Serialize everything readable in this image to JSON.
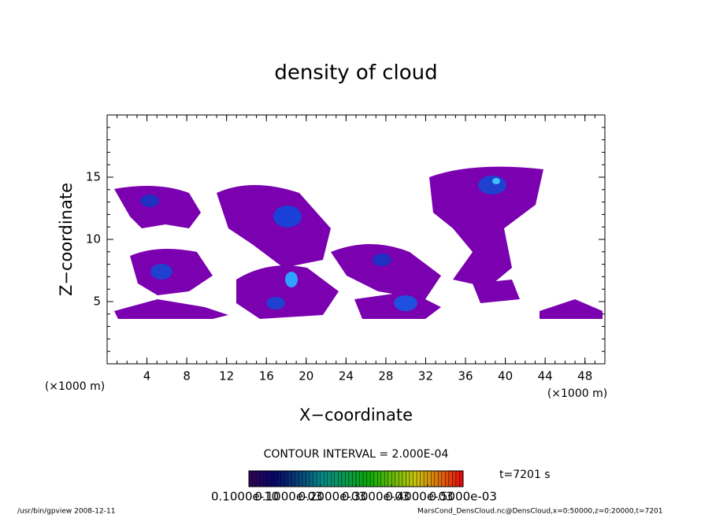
{
  "chart_data": {
    "type": "contour",
    "title": "density of cloud",
    "x_label": "X−coordinate",
    "y_label": "Z−coordinate",
    "x_unit": "(×1000 m)",
    "y_unit": "(×1000 m)",
    "xlim": [
      0,
      50
    ],
    "ylim": [
      0,
      20
    ],
    "xticks": [
      4,
      8,
      12,
      16,
      20,
      24,
      28,
      32,
      36,
      40,
      44,
      48
    ],
    "yticks": [
      5,
      10,
      15
    ],
    "contour_interval": "CONTOUR INTERVAL = 2.000E-04",
    "time_label": "t=7201 s",
    "colorbar": {
      "lim": [
        0,
        0.0006
      ],
      "ticks": [
        {
          "value": 1e-11,
          "label": "0.1000e-10"
        },
        {
          "value": 0.0001,
          "label": "0.1000e-03"
        },
        {
          "value": 0.0002,
          "label": "0.2000e-03"
        },
        {
          "value": 0.0003,
          "label": "0.3000e-03"
        },
        {
          "value": 0.0004,
          "label": "0.4000e-03"
        },
        {
          "value": 0.0005,
          "label": "0.5000e-03"
        }
      ]
    },
    "footer_left": "/usr/bin/gpview   2008-12-11",
    "footer_right": "MarsCond_DensCloud.nc@DensCloud,x=0:50000,z=0:20000,t=7201"
  }
}
